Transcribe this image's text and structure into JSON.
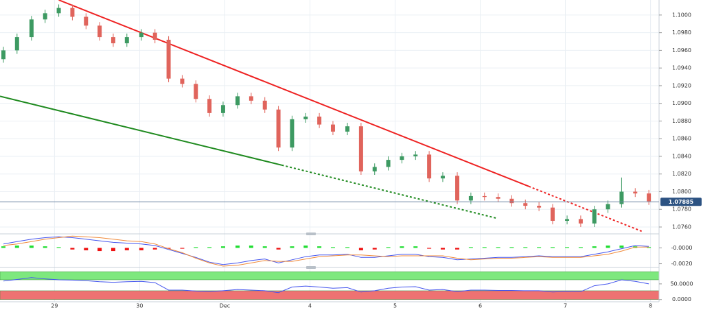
{
  "chart_data": [
    {
      "type": "candlestick",
      "x": [
        -0.6,
        -0.44,
        -0.27,
        -0.11,
        0.05,
        0.21,
        0.37,
        0.53,
        0.69,
        0.85,
        1.02,
        1.18,
        1.34,
        1.5,
        1.66,
        1.82,
        1.98,
        2.15,
        2.31,
        2.47,
        2.63,
        2.79,
        2.95,
        3.11,
        3.27,
        3.44,
        3.6,
        3.76,
        3.92,
        4.08,
        4.24,
        4.4,
        4.56,
        4.73,
        4.89,
        5.05,
        5.21,
        5.37,
        5.53,
        5.69,
        5.85,
        6.02,
        6.18,
        6.34,
        6.5,
        6.66,
        6.82,
        6.98
      ],
      "open": [
        1.095,
        1.096,
        1.0975,
        1.0995,
        1.1002,
        1.1008,
        1.0998,
        1.0988,
        1.0975,
        1.0968,
        1.0975,
        1.098,
        1.0972,
        1.0928,
        1.0922,
        1.0905,
        1.0889,
        1.0898,
        1.0908,
        1.0903,
        1.0893,
        1.085,
        1.0882,
        1.0885,
        1.0876,
        1.0868,
        1.0874,
        1.0823,
        1.0828,
        1.0836,
        1.084,
        1.0842,
        1.0815,
        1.0818,
        1.079,
        1.0795,
        1.0794,
        1.0792,
        1.0787,
        1.0784,
        1.0782,
        1.0767,
        1.0769,
        1.0764,
        1.078,
        1.0786,
        1.08,
        1.0798
      ],
      "high": [
        1.0964,
        1.0979,
        1.0999,
        1.1006,
        1.1012,
        1.1012,
        1.1002,
        1.0992,
        1.0979,
        1.0979,
        1.0984,
        1.0984,
        1.0976,
        1.0932,
        1.0926,
        1.0909,
        1.0902,
        1.0912,
        1.0912,
        1.0907,
        1.0897,
        1.0886,
        1.0889,
        1.0889,
        1.088,
        1.0878,
        1.0878,
        1.0832,
        1.084,
        1.0844,
        1.0846,
        1.0846,
        1.0822,
        1.0822,
        1.0799,
        1.0799,
        1.0798,
        1.0796,
        1.0791,
        1.0788,
        1.0786,
        1.0773,
        1.0773,
        1.0784,
        1.079,
        1.0816,
        1.0804,
        1.0802
      ],
      "low": [
        1.0946,
        1.0956,
        1.0971,
        1.0991,
        1.0998,
        1.0994,
        1.0984,
        1.0971,
        1.0964,
        1.0964,
        1.0971,
        1.0968,
        1.0924,
        1.0918,
        1.0901,
        1.0885,
        1.0885,
        1.0894,
        1.0899,
        1.0889,
        1.0846,
        1.0846,
        1.0878,
        1.0872,
        1.0864,
        1.0864,
        1.0819,
        1.0819,
        1.0824,
        1.0832,
        1.0836,
        1.0811,
        1.0811,
        1.0786,
        1.0786,
        1.079,
        1.0788,
        1.0783,
        1.078,
        1.0778,
        1.0763,
        1.0763,
        1.076,
        1.076,
        1.0776,
        1.0782,
        1.0794,
        1.0785
      ],
      "close": [
        1.096,
        1.0975,
        1.0995,
        1.1002,
        1.1008,
        1.0998,
        1.0988,
        1.0975,
        1.0968,
        1.0975,
        1.098,
        1.0972,
        1.0928,
        1.0922,
        1.0905,
        1.0889,
        1.0898,
        1.0908,
        1.0903,
        1.0893,
        1.085,
        1.0882,
        1.0885,
        1.0876,
        1.0868,
        1.0874,
        1.0823,
        1.0828,
        1.0836,
        1.084,
        1.0842,
        1.0815,
        1.0818,
        1.079,
        1.0795,
        1.0794,
        1.0792,
        1.0787,
        1.0784,
        1.0782,
        1.0767,
        1.0769,
        1.0764,
        1.078,
        1.0786,
        1.08,
        1.0798,
        1.0789
      ],
      "colors": {
        "up": "#3d9a62",
        "down": "#e0645c"
      },
      "xlim": [
        -0.64,
        7.1
      ],
      "xticks": [
        {
          "value": 0,
          "label": "29"
        },
        {
          "value": 1,
          "label": "30"
        },
        {
          "value": 2,
          "label": "Dec"
        },
        {
          "value": 3,
          "label": "4"
        },
        {
          "value": 4,
          "label": "5"
        },
        {
          "value": 5,
          "label": "6"
        },
        {
          "value": 6,
          "label": "7"
        },
        {
          "value": 7,
          "label": "8"
        }
      ],
      "ylim": [
        1.0753,
        1.1017
      ],
      "yticks": [
        {
          "value": 1.1,
          "label": "1.1000"
        },
        {
          "value": 1.098,
          "label": "1.0980"
        },
        {
          "value": 1.096,
          "label": "1.0960"
        },
        {
          "value": 1.094,
          "label": "1.0940"
        },
        {
          "value": 1.092,
          "label": "1.0920"
        },
        {
          "value": 1.09,
          "label": "1.0900"
        },
        {
          "value": 1.088,
          "label": "1.0880"
        },
        {
          "value": 1.086,
          "label": "1.0860"
        },
        {
          "value": 1.084,
          "label": "1.0840"
        },
        {
          "value": 1.082,
          "label": "1.0820"
        },
        {
          "value": 1.08,
          "label": "1.0800"
        },
        {
          "value": 1.078,
          "label": "1.0780"
        },
        {
          "value": 1.076,
          "label": "1.0760"
        }
      ],
      "grid": true,
      "last_price": 1.07885,
      "trendlines": [
        {
          "color": "#ee2222",
          "style": "solid",
          "x": [
            0.05,
            5.57
          ],
          "y": [
            1.1017,
            1.0806
          ]
        },
        {
          "color": "#ee2222",
          "style": "dotted",
          "x": [
            5.57,
            6.9
          ],
          "y": [
            1.0806,
            1.0755
          ]
        },
        {
          "color": "#1f8a1f",
          "style": "solid",
          "x": [
            -0.64,
            2.67
          ],
          "y": [
            1.0908,
            1.083
          ]
        },
        {
          "color": "#1f8a1f",
          "style": "dotted",
          "x": [
            2.67,
            5.19
          ],
          "y": [
            1.083,
            1.077
          ]
        }
      ]
    },
    {
      "type": "macd",
      "histogram": [
        0.0002,
        0.0003,
        0.0003,
        0.0002,
        0.0001,
        -0.0002,
        -0.0003,
        -0.0004,
        -0.0004,
        -0.0003,
        -0.0003,
        -0.0002,
        -0.0001,
        -0.0001,
        0.0001,
        0.0001,
        0.0002,
        0.0003,
        0.0003,
        0.0002,
        -0.0002,
        0.0002,
        0.0003,
        0.0002,
        0.0001,
        0.0001,
        -0.0003,
        -0.0002,
        0.0001,
        0.0002,
        0.0002,
        -0.0001,
        -0.0002,
        -0.0002,
        0.0001,
        0.0001,
        0.0001,
        0.0001,
        0.0001,
        0.0001,
        0.0001,
        0.0001,
        0.0001,
        0.0002,
        0.0003,
        0.0003,
        0.0002,
        0.0001
      ],
      "colors": {
        "positive": "#22dd33",
        "negative": "#ee1111"
      },
      "series": [
        {
          "color": "#4455ee",
          "values": [
            0.0005,
            0.0008,
            0.0011,
            0.0013,
            0.0014,
            0.0013,
            0.0011,
            0.0009,
            0.0007,
            0.0006,
            0.0005,
            0.0003,
            -0.0002,
            -0.0007,
            -0.0012,
            -0.0018,
            -0.0021,
            -0.0019,
            -0.0016,
            -0.0014,
            -0.0019,
            -0.0015,
            -0.0011,
            -0.0009,
            -0.0009,
            -0.0008,
            -0.0012,
            -0.0012,
            -0.001,
            -0.0008,
            -0.0008,
            -0.0011,
            -0.0012,
            -0.0015,
            -0.0014,
            -0.0013,
            -0.0012,
            -0.0012,
            -0.0011,
            -0.001,
            -0.0011,
            -0.0011,
            -0.0011,
            -0.0008,
            -0.0005,
            -0.0001,
            0.0003,
            0.0002
          ]
        },
        {
          "color": "#f08a3a",
          "values": [
            0.0003,
            0.0005,
            0.0008,
            0.0011,
            0.0013,
            0.0015,
            0.0014,
            0.0013,
            0.0011,
            0.0009,
            0.0008,
            0.0005,
            -0.0001,
            -0.0006,
            -0.0013,
            -0.0019,
            -0.0023,
            -0.0022,
            -0.0019,
            -0.0016,
            -0.0017,
            -0.0017,
            -0.0014,
            -0.0011,
            -0.001,
            -0.0009,
            -0.0009,
            -0.001,
            -0.0011,
            -0.001,
            -0.001,
            -0.001,
            -0.001,
            -0.0013,
            -0.0015,
            -0.0014,
            -0.0013,
            -0.0013,
            -0.0012,
            -0.0011,
            -0.0012,
            -0.0012,
            -0.0012,
            -0.001,
            -0.0008,
            -0.0004,
            0.0001,
            0.0001
          ]
        }
      ],
      "ylim": [
        -0.0023,
        0.0016
      ],
      "yticks": [
        {
          "value": 0,
          "label": "-0.0000"
        },
        {
          "value": -0.002,
          "label": "-0.0020"
        }
      ]
    },
    {
      "type": "line",
      "values": [
        59,
        64,
        70,
        66,
        63,
        62,
        60,
        57,
        55,
        57,
        58,
        54,
        30,
        30,
        27,
        25,
        28,
        32,
        30,
        28,
        22,
        40,
        43,
        40,
        36,
        38,
        24,
        28,
        36,
        40,
        41,
        30,
        32,
        25,
        30,
        30,
        29,
        29,
        28,
        28,
        24,
        26,
        25,
        44,
        50,
        63,
        58,
        50
      ],
      "color": "#4455ee",
      "zones": [
        {
          "color": "#7ee87e",
          "range": [
            63,
            89
          ]
        },
        {
          "color": "#ee7272",
          "range": [
            0,
            28
          ]
        }
      ],
      "ylim": [
        -5,
        98
      ],
      "yticks": [
        {
          "value": 50,
          "label": "50.0000"
        },
        {
          "value": 0,
          "label": "0.0000"
        }
      ]
    }
  ]
}
